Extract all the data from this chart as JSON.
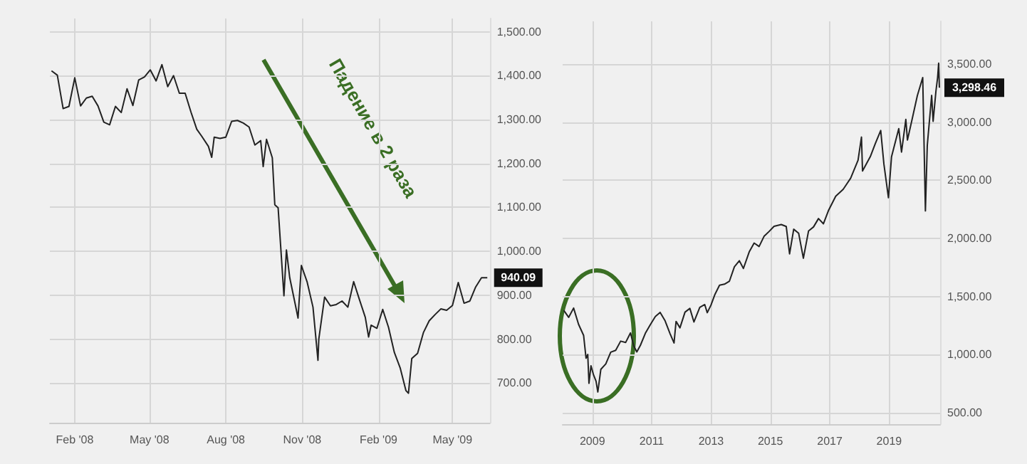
{
  "chart_data": [
    {
      "type": "line",
      "xlim": [
        "2008-01-02",
        "2009-06-15"
      ],
      "ylim": [
        610,
        1530
      ],
      "xticks": [
        {
          "value": "2008-02-01",
          "label": "Feb '08"
        },
        {
          "value": "2008-05-01",
          "label": "May '08"
        },
        {
          "value": "2008-08-01",
          "label": "Aug '08"
        },
        {
          "value": "2008-11-01",
          "label": "Nov '08"
        },
        {
          "value": "2009-02-01",
          "label": "Feb '09"
        },
        {
          "value": "2009-05-01",
          "label": "May '09"
        }
      ],
      "yticks": [
        {
          "value": 700,
          "label": "700.00"
        },
        {
          "value": 800,
          "label": "800.00"
        },
        {
          "value": 900,
          "label": "900.00"
        },
        {
          "value": 1000,
          "label": "1,000.00"
        },
        {
          "value": 1100,
          "label": "1,100.00"
        },
        {
          "value": 1200,
          "label": "1,200.00"
        },
        {
          "value": 1300,
          "label": "1,300.00"
        },
        {
          "value": 1400,
          "label": "1,400.00"
        },
        {
          "value": 1500,
          "label": "1,500.00"
        }
      ],
      "grid": true,
      "x": [
        "2008-01-04",
        "2008-01-11",
        "2008-01-18",
        "2008-01-25",
        "2008-02-01",
        "2008-02-08",
        "2008-02-15",
        "2008-02-22",
        "2008-02-29",
        "2008-03-07",
        "2008-03-14",
        "2008-03-21",
        "2008-03-28",
        "2008-04-04",
        "2008-04-11",
        "2008-04-18",
        "2008-04-25",
        "2008-05-02",
        "2008-05-09",
        "2008-05-16",
        "2008-05-23",
        "2008-05-30",
        "2008-06-06",
        "2008-06-13",
        "2008-06-20",
        "2008-06-27",
        "2008-07-03",
        "2008-07-11",
        "2008-07-15",
        "2008-07-18",
        "2008-07-25",
        "2008-08-01",
        "2008-08-08",
        "2008-08-15",
        "2008-08-22",
        "2008-08-29",
        "2008-09-05",
        "2008-09-12",
        "2008-09-15",
        "2008-09-19",
        "2008-09-26",
        "2008-09-29",
        "2008-10-03",
        "2008-10-10",
        "2008-10-13",
        "2008-10-17",
        "2008-10-24",
        "2008-10-27",
        "2008-10-31",
        "2008-11-07",
        "2008-11-14",
        "2008-11-20",
        "2008-11-21",
        "2008-11-28",
        "2008-12-05",
        "2008-12-12",
        "2008-12-19",
        "2008-12-26",
        "2009-01-02",
        "2009-01-09",
        "2009-01-16",
        "2009-01-20",
        "2009-01-23",
        "2009-01-30",
        "2009-02-06",
        "2009-02-13",
        "2009-02-20",
        "2009-02-27",
        "2009-03-06",
        "2009-03-09",
        "2009-03-13",
        "2009-03-20",
        "2009-03-27",
        "2009-04-03",
        "2009-04-10",
        "2009-04-17",
        "2009-04-24",
        "2009-05-01",
        "2009-05-08",
        "2009-05-15",
        "2009-05-22",
        "2009-05-29",
        "2009-06-05",
        "2009-06-12"
      ],
      "series": [
        {
          "color": "#222222",
          "values": [
            1411,
            1401,
            1325,
            1330,
            1395,
            1331,
            1349,
            1353,
            1331,
            1294,
            1288,
            1330,
            1316,
            1370,
            1332,
            1390,
            1397,
            1413,
            1388,
            1425,
            1375,
            1400,
            1360,
            1360,
            1317,
            1278,
            1262,
            1239,
            1214,
            1260,
            1257,
            1260,
            1296,
            1298,
            1292,
            1283,
            1242,
            1252,
            1193,
            1255,
            1213,
            1106,
            1099,
            899,
            1003,
            940,
            876,
            848,
            968,
            930,
            873,
            752,
            800,
            896,
            876,
            879,
            887,
            873,
            931,
            890,
            850,
            805,
            832,
            825,
            868,
            827,
            770,
            735,
            683,
            677,
            756,
            768,
            815,
            842,
            856,
            869,
            866,
            877,
            929,
            882,
            887,
            919,
            940,
            940.09
          ]
        }
      ],
      "annotations": [
        "Падение в 2 раза",
        {
          "text": "940.09",
          "y": 940.09
        }
      ]
    },
    {
      "type": "line",
      "xlim": [
        "2008-01-01",
        "2020-09-20"
      ],
      "ylim": [
        400,
        3870
      ],
      "xticks": [
        {
          "value": "2009-01-01",
          "label": "2009"
        },
        {
          "value": "2011-01-01",
          "label": "2011"
        },
        {
          "value": "2013-01-01",
          "label": "2013"
        },
        {
          "value": "2015-01-01",
          "label": "2015"
        },
        {
          "value": "2017-01-01",
          "label": "2017"
        },
        {
          "value": "2019-01-01",
          "label": "2019"
        }
      ],
      "yticks": [
        {
          "value": 500,
          "label": "500.00"
        },
        {
          "value": 1000,
          "label": "1,000.00"
        },
        {
          "value": 1500,
          "label": "1,500.00"
        },
        {
          "value": 2000,
          "label": "2,000.00"
        },
        {
          "value": 2500,
          "label": "2,500.00"
        },
        {
          "value": 3000,
          "label": "3,000.00"
        },
        {
          "value": 3500,
          "label": "3,500.00"
        }
      ],
      "grid": true,
      "x": [
        "2008-01-15",
        "2008-03-15",
        "2008-05-15",
        "2008-07-15",
        "2008-09-15",
        "2008-10-15",
        "2008-11-05",
        "2008-11-20",
        "2008-12-15",
        "2009-01-15",
        "2009-02-15",
        "2009-03-09",
        "2009-04-15",
        "2009-06-15",
        "2009-08-15",
        "2009-10-15",
        "2009-12-15",
        "2010-02-15",
        "2010-04-15",
        "2010-05-25",
        "2010-07-02",
        "2010-08-15",
        "2010-10-15",
        "2010-12-15",
        "2011-02-15",
        "2011-04-15",
        "2011-06-15",
        "2011-08-15",
        "2011-10-03",
        "2011-10-28",
        "2011-12-15",
        "2012-02-15",
        "2012-04-15",
        "2012-06-04",
        "2012-08-15",
        "2012-10-15",
        "2012-11-15",
        "2012-12-31",
        "2013-02-15",
        "2013-04-15",
        "2013-06-15",
        "2013-08-15",
        "2013-10-15",
        "2013-12-15",
        "2014-02-03",
        "2014-04-15",
        "2014-06-15",
        "2014-08-15",
        "2014-10-15",
        "2014-12-15",
        "2015-02-15",
        "2015-05-15",
        "2015-07-15",
        "2015-08-25",
        "2015-10-15",
        "2015-12-15",
        "2016-02-11",
        "2016-04-15",
        "2016-06-15",
        "2016-08-15",
        "2016-10-15",
        "2016-12-15",
        "2017-03-15",
        "2017-06-15",
        "2017-09-15",
        "2017-12-15",
        "2018-01-26",
        "2018-02-08",
        "2018-05-15",
        "2018-07-15",
        "2018-09-20",
        "2018-10-29",
        "2018-12-24",
        "2019-01-31",
        "2019-04-30",
        "2019-06-03",
        "2019-07-26",
        "2019-08-15",
        "2019-10-15",
        "2019-12-15",
        "2020-02-19",
        "2020-03-23",
        "2020-04-15",
        "2020-06-08",
        "2020-06-26",
        "2020-07-31",
        "2020-08-20",
        "2020-09-02",
        "2020-09-11"
      ],
      "series": [
        {
          "color": "#222222",
          "values": [
            1380,
            1320,
            1400,
            1260,
            1165,
            968,
            1000,
            752,
            903,
            825,
            770,
            677,
            872,
            919,
            1020,
            1036,
            1115,
            1104,
            1186,
            1074,
            1022,
            1079,
            1183,
            1257,
            1327,
            1363,
            1290,
            1180,
            1099,
            1285,
            1230,
            1365,
            1397,
            1280,
            1406,
            1430,
            1360,
            1426,
            1514,
            1597,
            1606,
            1632,
            1756,
            1808,
            1741,
            1883,
            1960,
            1930,
            2018,
            2059,
            2104,
            2120,
            2103,
            1867,
            2079,
            2044,
            1829,
            2065,
            2099,
            2171,
            2126,
            2239,
            2363,
            2423,
            2519,
            2674,
            2873,
            2581,
            2705,
            2816,
            2930,
            2641,
            2351,
            2704,
            2946,
            2744,
            3025,
            2847,
            3038,
            3231,
            3386,
            2237,
            2800,
            3232,
            3009,
            3271,
            3385,
            3510,
            3298.46
          ]
        }
      ],
      "annotations": [
        {
          "text": "3,298.46",
          "y": 3298.46
        }
      ]
    }
  ]
}
